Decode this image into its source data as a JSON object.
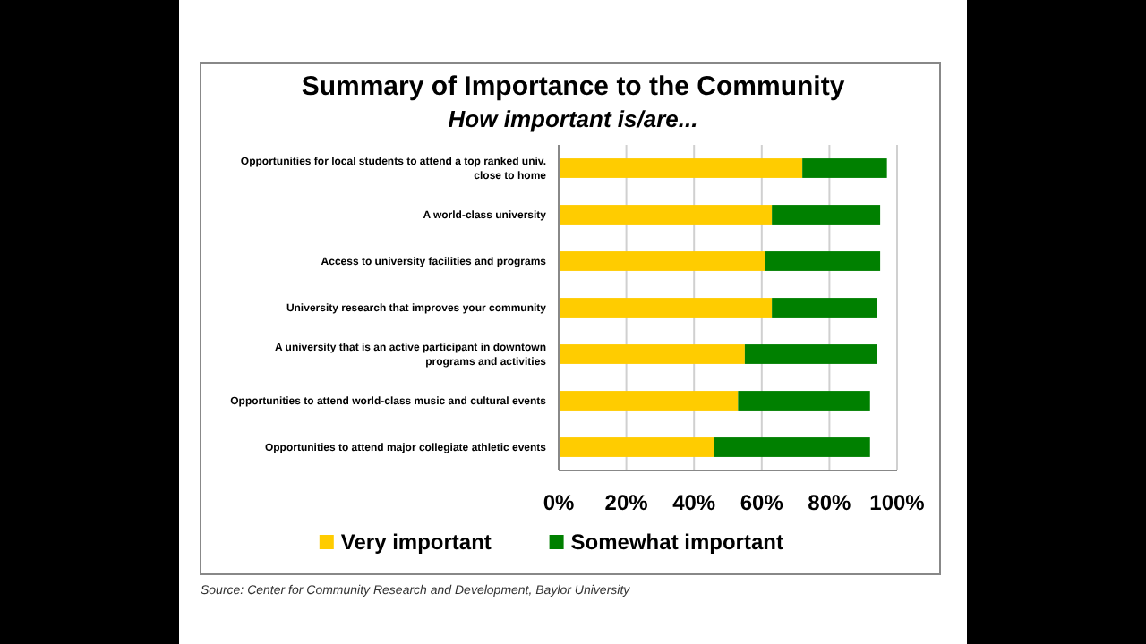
{
  "chart_data": {
    "type": "bar",
    "orientation": "horizontal",
    "stacked": true,
    "title": "Summary of Importance to the Community",
    "subtitle": "How important is/are...",
    "categories": [
      "Opportunities for local students to attend a top ranked univ. close to home",
      "A world-class university",
      "Access to university facilities and programs",
      "University research that improves your community",
      "A university that is an active participant in downtown programs and activities",
      "Opportunities to attend world-class music and cultural events",
      "Opportunities to attend major collegiate athletic events"
    ],
    "series": [
      {
        "name": "Very important",
        "color": "#ffcc00",
        "values": [
          72,
          63,
          61,
          63,
          55,
          53,
          46
        ]
      },
      {
        "name": "Somewhat important",
        "color": "#008000",
        "values": [
          25,
          32,
          34,
          31,
          39,
          39,
          46
        ]
      }
    ],
    "xlim": [
      0,
      100
    ],
    "xticks": [
      {
        "value": 0,
        "label": "0%"
      },
      {
        "value": 20,
        "label": "20%"
      },
      {
        "value": 40,
        "label": "40%"
      },
      {
        "value": 60,
        "label": "60%"
      },
      {
        "value": 80,
        "label": "80%"
      },
      {
        "value": 100,
        "label": "100%"
      }
    ],
    "grid": "x",
    "legend": "bottom",
    "annotations": [
      "Source: Center for Community Research and Development, Baylor University"
    ]
  }
}
